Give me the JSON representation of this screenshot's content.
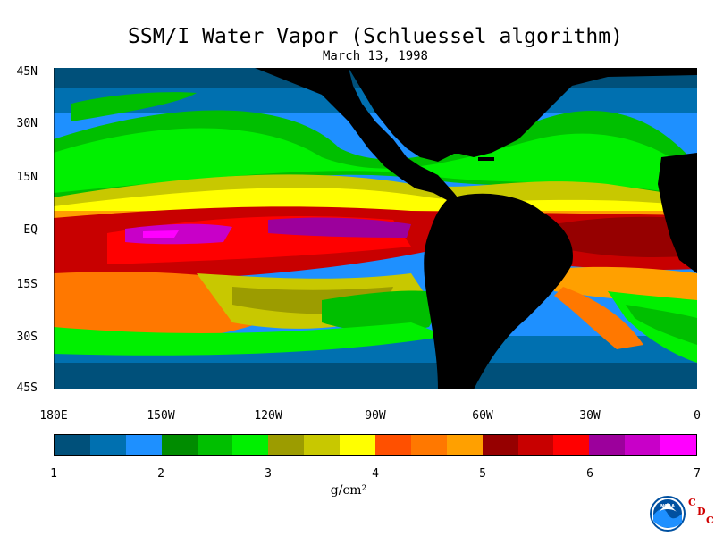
{
  "title": "SSM/I Water Vapor (Schluessel algorithm)",
  "subtitle": "March 13, 1998",
  "lat_labels": [
    "45N",
    "30N",
    "15N",
    "EQ",
    "15S",
    "30S",
    "45S"
  ],
  "lon_labels": [
    "180E",
    "150W",
    "120W",
    "90W",
    "60W",
    "30W",
    "0"
  ],
  "colorbar": {
    "ticks": [
      "1",
      "2",
      "3",
      "4",
      "5",
      "6",
      "7"
    ],
    "unit": "g/cm²",
    "colors": [
      "#00507a",
      "#0070b0",
      "#1e90ff",
      "#008c00",
      "#00bf00",
      "#00f000",
      "#9c9c00",
      "#c8c800",
      "#ffff00",
      "#ff5000",
      "#ff7800",
      "#ffa000",
      "#960000",
      "#c80000",
      "#ff0000",
      "#9c009c",
      "#c800c8",
      "#ff00ff"
    ]
  },
  "logo": {
    "text": "NOAA",
    "mark_letters": [
      "C",
      "D",
      "C"
    ]
  }
}
